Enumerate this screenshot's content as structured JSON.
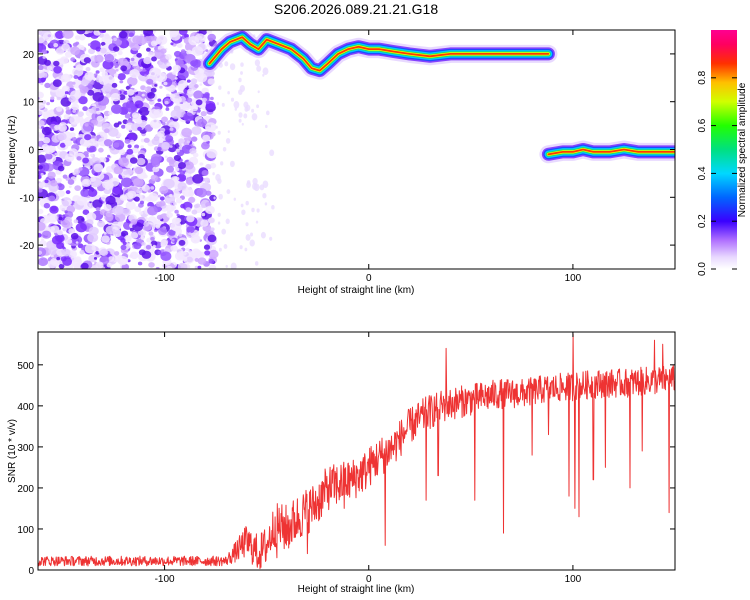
{
  "title": "S206.2026.089.21.21.G18",
  "chart_data": [
    {
      "type": "heatmap",
      "title": "S206.2026.089.21.21.G18",
      "xlabel": "Height of straight line (km)",
      "ylabel": "Frequency (Hz)",
      "xlim": [
        -162,
        150
      ],
      "ylim": [
        -25,
        25
      ],
      "xticks": [
        -100,
        0,
        100
      ],
      "yticks": [
        -20,
        -10,
        0,
        10,
        20
      ],
      "colorbar": {
        "label": "Normalized spectral amplitude",
        "range": [
          0,
          1
        ],
        "ticks": [
          "0.0",
          "0.2",
          "0.4",
          "0.6",
          "0.8"
        ],
        "tick_values": [
          0.0,
          0.2,
          0.4,
          0.6,
          0.8
        ]
      },
      "noise_region": {
        "x_from": -162,
        "x_to": -76
      },
      "ridges": [
        {
          "name": "upper-ridge",
          "points": [
            [
              -78,
              18
            ],
            [
              -72,
              21
            ],
            [
              -68,
              22.5
            ],
            [
              -62,
              23.5
            ],
            [
              -58,
              22
            ],
            [
              -54,
              21
            ],
            [
              -50,
              23
            ],
            [
              -44,
              22
            ],
            [
              -38,
              21
            ],
            [
              -32,
              19
            ],
            [
              -28,
              17
            ],
            [
              -24,
              16.5
            ],
            [
              -20,
              18
            ],
            [
              -15,
              20
            ],
            [
              -10,
              21
            ],
            [
              -5,
              21.5
            ],
            [
              0,
              21
            ],
            [
              5,
              21
            ],
            [
              12,
              20.5
            ],
            [
              20,
              20
            ],
            [
              30,
              19.5
            ],
            [
              40,
              20
            ],
            [
              50,
              20
            ],
            [
              60,
              20
            ],
            [
              70,
              20
            ],
            [
              80,
              20
            ],
            [
              88,
              20
            ]
          ]
        },
        {
          "name": "lower-ridge",
          "points": [
            [
              88,
              -1
            ],
            [
              95,
              -0.5
            ],
            [
              100,
              -0.5
            ],
            [
              105,
              0
            ],
            [
              110,
              -0.5
            ],
            [
              118,
              -0.5
            ],
            [
              125,
              0
            ],
            [
              132,
              -0.5
            ],
            [
              140,
              -0.5
            ],
            [
              150,
              -0.5
            ]
          ]
        }
      ]
    },
    {
      "type": "line",
      "xlabel": "Height of straight line (km)",
      "ylabel": "SNR (10 * v/v)",
      "xlim": [
        -162,
        150
      ],
      "ylim": [
        0,
        580
      ],
      "xticks": [
        -100,
        0,
        100
      ],
      "yticks": [
        0,
        100,
        200,
        300,
        400,
        500
      ],
      "color": "#ee3333",
      "trend": [
        [
          -162,
          22
        ],
        [
          -70,
          22
        ],
        [
          -66,
          40
        ],
        [
          -60,
          70
        ],
        [
          -54,
          40
        ],
        [
          -50,
          60
        ],
        [
          -46,
          110
        ],
        [
          -40,
          100
        ],
        [
          -34,
          130
        ],
        [
          -26,
          160
        ],
        [
          -20,
          200
        ],
        [
          -14,
          210
        ],
        [
          -8,
          220
        ],
        [
          -2,
          240
        ],
        [
          4,
          270
        ],
        [
          12,
          300
        ],
        [
          20,
          350
        ],
        [
          28,
          380
        ],
        [
          36,
          400
        ],
        [
          45,
          410
        ],
        [
          55,
          420
        ],
        [
          65,
          430
        ],
        [
          75,
          430
        ],
        [
          85,
          440
        ],
        [
          95,
          445
        ],
        [
          105,
          450
        ],
        [
          115,
          455
        ],
        [
          125,
          455
        ],
        [
          135,
          460
        ],
        [
          150,
          465
        ]
      ],
      "noise_amplitude": [
        [
          -162,
          12
        ],
        [
          -70,
          12
        ],
        [
          -60,
          40
        ],
        [
          -40,
          60
        ],
        [
          -20,
          55
        ],
        [
          0,
          50
        ],
        [
          20,
          45
        ],
        [
          40,
          40
        ],
        [
          80,
          35
        ],
        [
          150,
          35
        ]
      ],
      "dips": [
        [
          -45,
          30
        ],
        [
          -30,
          40
        ],
        [
          -12,
          150
        ],
        [
          8,
          60
        ],
        [
          28,
          170
        ],
        [
          34,
          230
        ],
        [
          52,
          170
        ],
        [
          66,
          90
        ],
        [
          80,
          280
        ],
        [
          88,
          330
        ],
        [
          98,
          180
        ],
        [
          101,
          150
        ],
        [
          103,
          130
        ],
        [
          110,
          220
        ],
        [
          116,
          250
        ],
        [
          128,
          200
        ],
        [
          134,
          290
        ],
        [
          147,
          140
        ]
      ],
      "spikes": [
        [
          38,
          540
        ],
        [
          100,
          575
        ],
        [
          140,
          560
        ],
        [
          144,
          550
        ]
      ]
    }
  ]
}
